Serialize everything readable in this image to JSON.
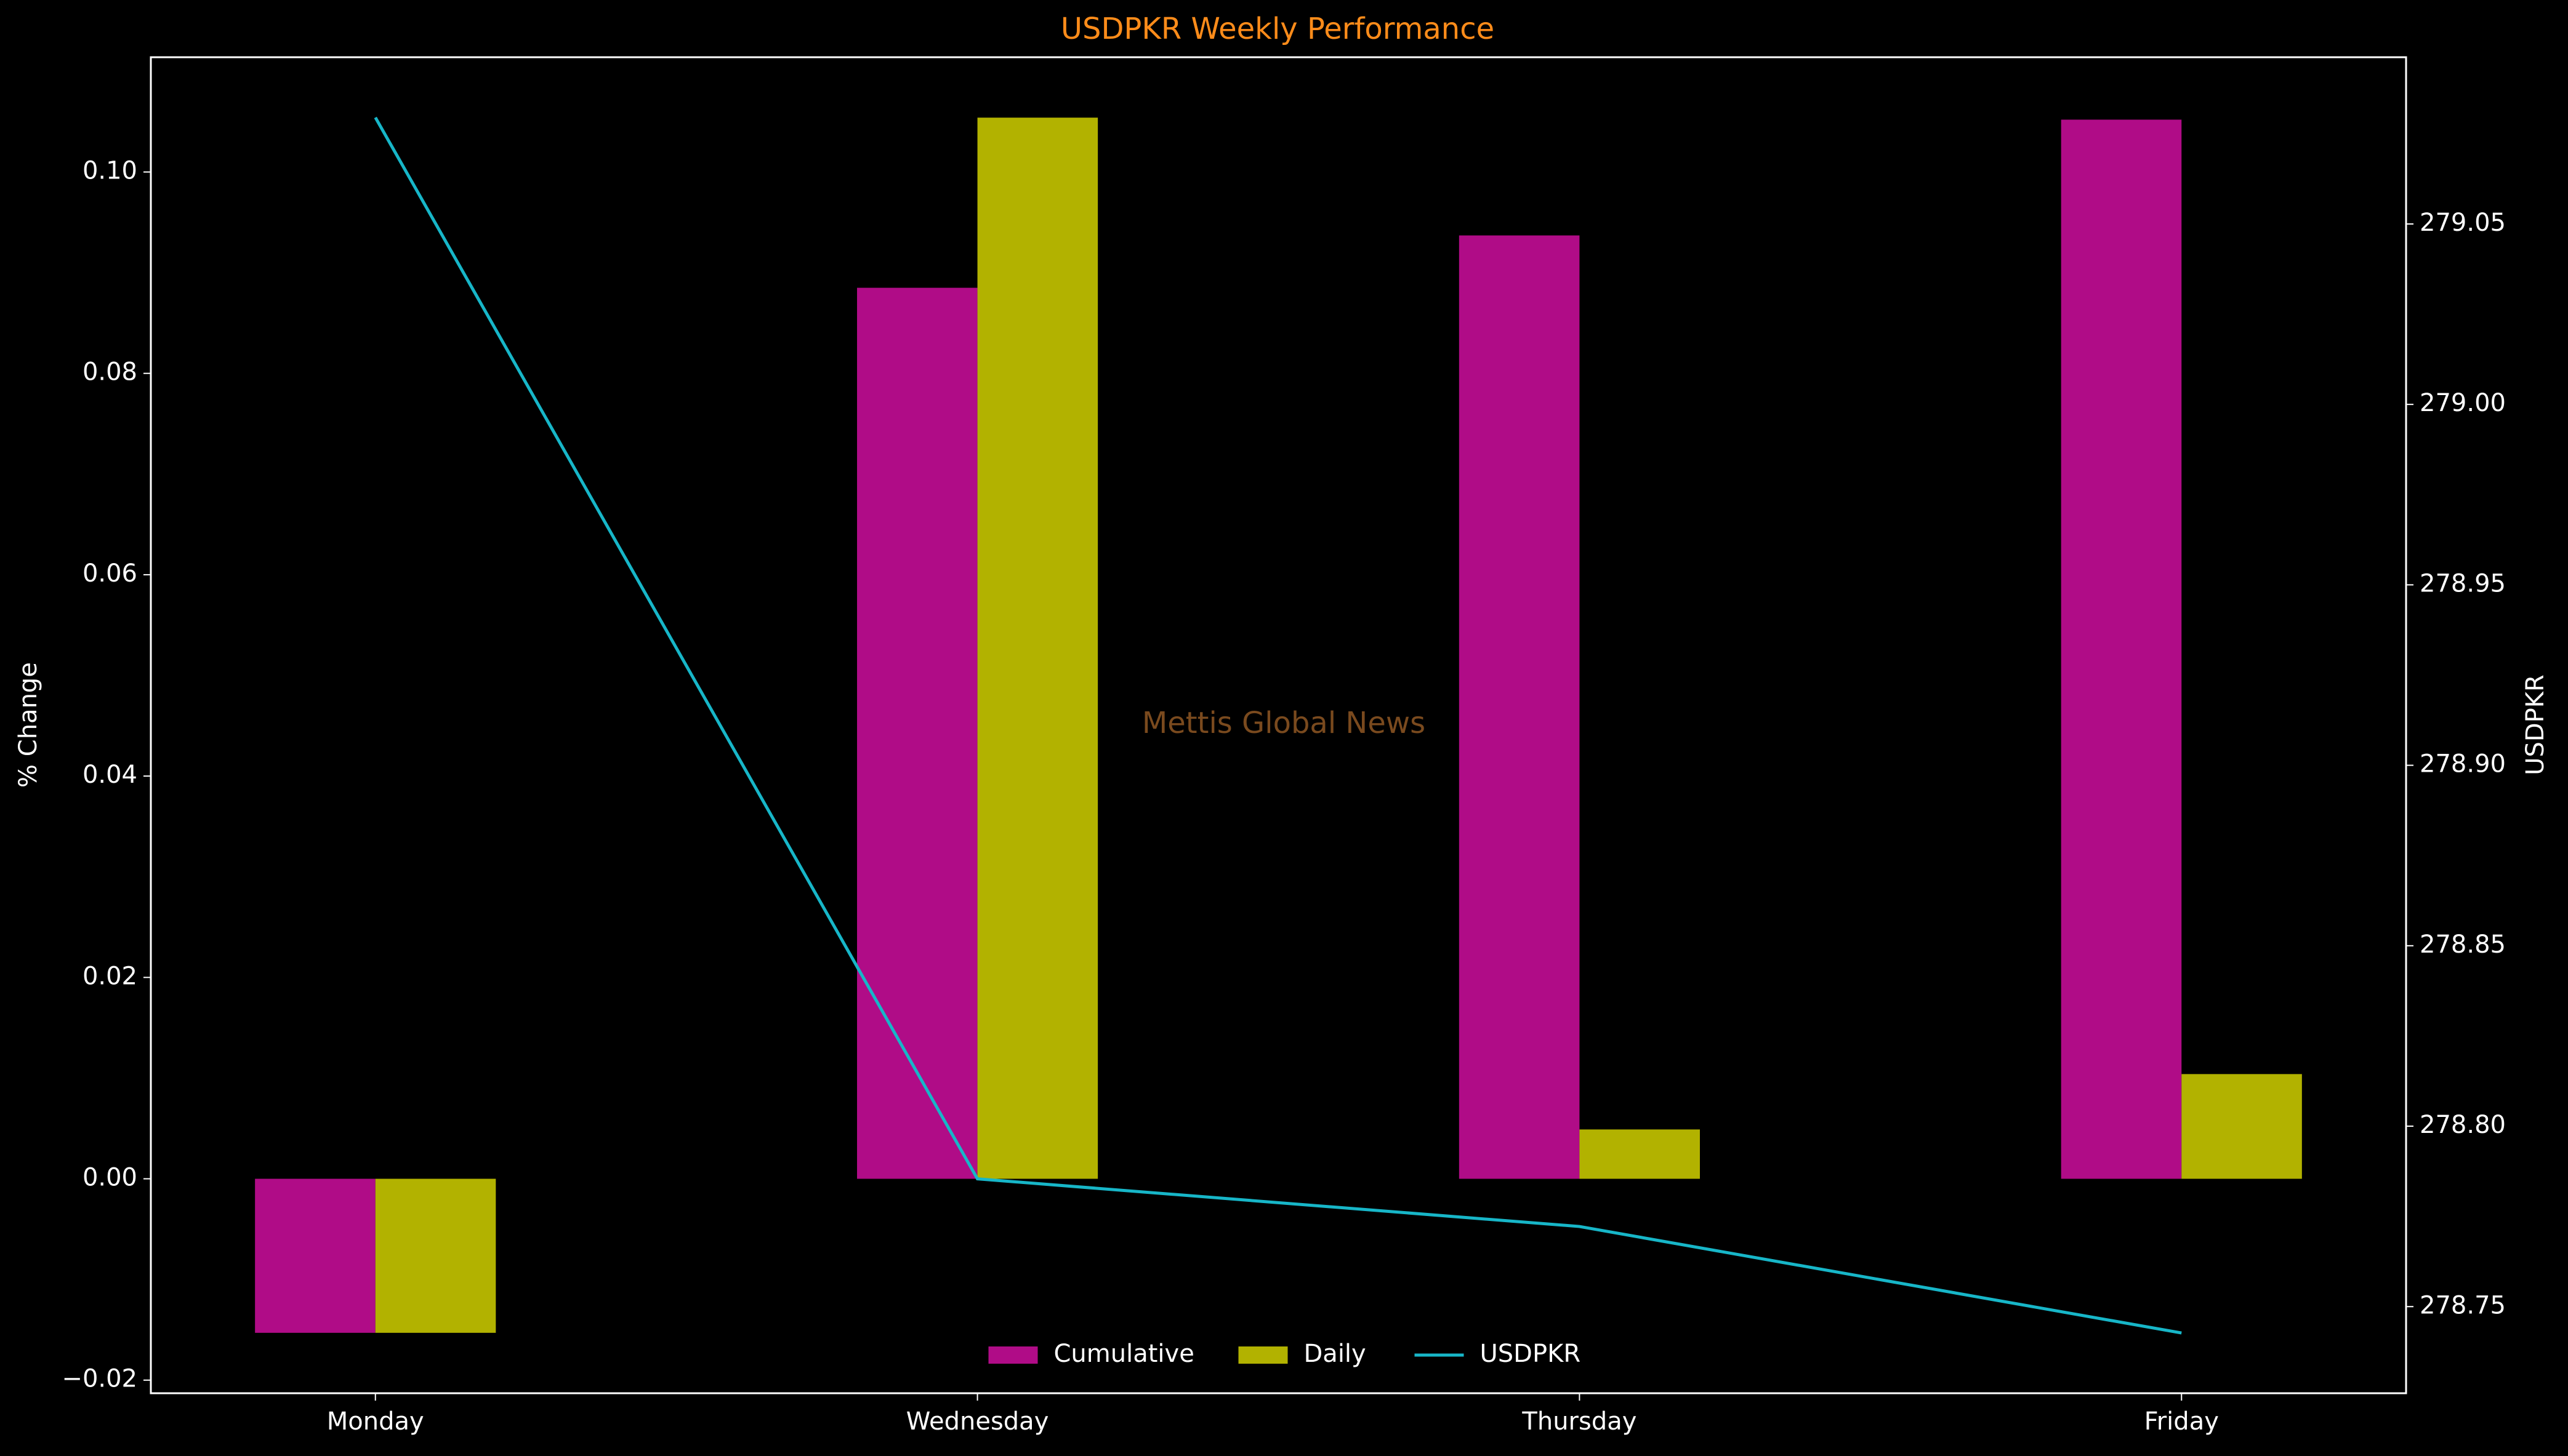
{
  "chart_data": {
    "type": "bar",
    "title": "USDPKR Weekly Performance",
    "watermark": "Mettis Global News",
    "ylabel": "% Change",
    "y2label": "USDPKR",
    "categories": [
      "Monday",
      "Wednesday",
      "Thursday",
      "Friday"
    ],
    "series": [
      {
        "name": "Cumulative",
        "type": "bar",
        "color": "#b00c87",
        "values": [
          -0.0153,
          0.0885,
          0.0937,
          0.1052
        ]
      },
      {
        "name": "Daily",
        "type": "bar",
        "color": "#b2b200",
        "values": [
          -0.0153,
          0.1054,
          0.0049,
          0.0104
        ]
      },
      {
        "name": "USDPKR",
        "type": "line",
        "axis": "y2",
        "color": "#17b6c8",
        "values": [
          279.0795,
          278.7854,
          278.7722,
          278.7427
        ]
      }
    ],
    "ylim": [
      -0.0213,
      0.1114
    ],
    "yticks": [
      {
        "value": -0.02,
        "label": "−0.02"
      },
      {
        "value": 0,
        "label": "0.00"
      },
      {
        "value": 0.02,
        "label": "0.02"
      },
      {
        "value": 0.04,
        "label": "0.04"
      },
      {
        "value": 0.06,
        "label": "0.06"
      },
      {
        "value": 0.08,
        "label": "0.08"
      },
      {
        "value": 0.1,
        "label": "0.10"
      }
    ],
    "y2lim": [
      278.726,
      279.0962
    ],
    "y2ticks": [
      278.75,
      {
        "value": 278.8,
        "label": "278.80"
      },
      278.85,
      {
        "value": 278.9,
        "label": "278.90"
      },
      278.95,
      {
        "value": 279.0,
        "label": "279.00"
      },
      279.05
    ],
    "legend": "lower center",
    "grid": false
  }
}
